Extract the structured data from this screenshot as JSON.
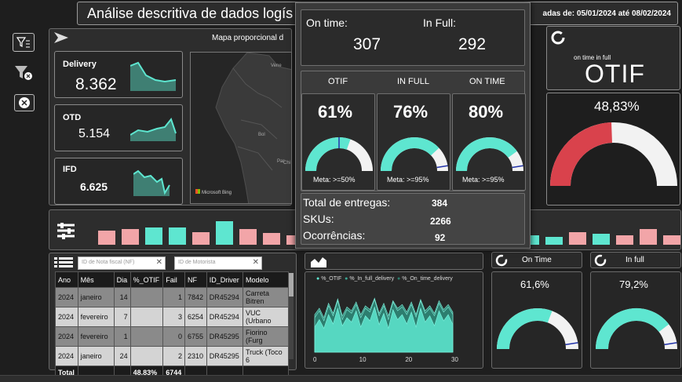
{
  "header": {
    "title": "Análise descritiva de dados logís",
    "date_range": "adas de: 05/01/2024 até 08/02/2024"
  },
  "kpis": [
    {
      "label": "Delivery",
      "value": "8.362"
    },
    {
      "label": "OTD",
      "value": "5.154"
    },
    {
      "label": "IFD",
      "value": "6.625"
    }
  ],
  "map": {
    "title": "Mapa proporcional d",
    "attribution": "Microsoft Bing"
  },
  "filters": {
    "nf_placeholder": "ID de Nota fiscal (NF)",
    "driver_placeholder": "ID de Motorista"
  },
  "table": {
    "columns": [
      "Ano",
      "Mês",
      "Dia",
      "%_OTIF",
      "Fail",
      "NF",
      "ID_Driver",
      "Modelo"
    ],
    "rows": [
      [
        "2024",
        "janeiro",
        "14",
        "",
        "1",
        "7842",
        "DR45294",
        "Carreta Bitren"
      ],
      [
        "2024",
        "fevereiro",
        "7",
        "",
        "3",
        "6254",
        "DR45294",
        "VUC (Urbano"
      ],
      [
        "2024",
        "fevereiro",
        "1",
        "",
        "0",
        "6755",
        "DR45295",
        "Fiorino (Furg"
      ],
      [
        "2024",
        "janeiro",
        "24",
        "",
        "2",
        "2310",
        "DR45295",
        "Truck (Toco 6"
      ]
    ],
    "total": {
      "label": "Total",
      "otif": "48,83%",
      "fail": "6744"
    }
  },
  "line_chart": {
    "legend": [
      "%_OTIF",
      "%_In_full_delivery",
      "%_On_time_delivery"
    ]
  },
  "chart_data": {
    "type": "area",
    "x_ticks": [
      "0",
      "10",
      "20",
      "30"
    ],
    "series": [
      {
        "name": "%_OTIF",
        "values": [
          40,
          52,
          38,
          60,
          45,
          70,
          42,
          55,
          48,
          66,
          40,
          58,
          50,
          72,
          44,
          62,
          38,
          68,
          52,
          60,
          45,
          64,
          40,
          70,
          48,
          58,
          42,
          66,
          50,
          60,
          44
        ]
      },
      {
        "name": "%_In_full_delivery",
        "values": [
          60,
          70,
          55,
          78,
          62,
          85,
          58,
          72,
          66,
          80,
          60,
          74,
          68,
          86,
          62,
          78,
          58,
          82,
          70,
          76,
          64,
          80,
          60,
          84,
          66,
          74,
          62,
          82,
          68,
          76,
          64
        ]
      },
      {
        "name": "%_On_time_delivery",
        "values": [
          55,
          66,
          50,
          74,
          58,
          82,
          52,
          68,
          62,
          76,
          55,
          70,
          64,
          84,
          58,
          74,
          52,
          80,
          66,
          72,
          60,
          76,
          56,
          82,
          62,
          70,
          58,
          78,
          64,
          72,
          60
        ]
      }
    ]
  },
  "popup": {
    "on_time_label": "On time:",
    "on_time_value": "307",
    "in_full_label": "In Full:",
    "in_full_value": "292",
    "gauges": [
      {
        "title": "OTIF",
        "value": "61%",
        "fraction": 0.61,
        "meta": "Meta: >=50%"
      },
      {
        "title": "IN FULL",
        "value": "76%",
        "fraction": 0.76,
        "meta": "Meta: >=95%"
      },
      {
        "title": "ON TIME",
        "value": "80%",
        "fraction": 0.8,
        "meta": "Meta: >=95%"
      }
    ],
    "stats": [
      {
        "label": "Total de entregas:",
        "value": "384"
      },
      {
        "label": "SKUs:",
        "value": "2266"
      },
      {
        "label": "Ocorrências:",
        "value": "92"
      }
    ]
  },
  "otif_card": {
    "subtitle": "on time in full",
    "title": "OTIF",
    "value": "48,83%",
    "fraction": 0.4883
  },
  "small_gauges": [
    {
      "label": "On Time",
      "value": "61,6%",
      "fraction": 0.616
    },
    {
      "label": "In full",
      "value": "79,2%",
      "fraction": 0.792
    }
  ],
  "bar_strip": {
    "values": [
      18,
      20,
      22,
      22,
      16,
      30,
      20,
      15,
      12,
      10,
      8,
      22,
      12,
      10,
      14,
      10,
      8,
      18,
      12,
      10,
      16,
      14,
      12,
      20,
      12
    ],
    "colors": [
      "#f2a5a8",
      "#f2a5a8",
      "#5ee6d0",
      "#5ee6d0",
      "#f2a5a8",
      "#5ee6d0",
      "#f2a5a8",
      "#f2a5a8"
    ]
  },
  "colors": {
    "teal": "#5ee6d0",
    "pink": "#f2a5a8",
    "red": "#d9424c"
  }
}
